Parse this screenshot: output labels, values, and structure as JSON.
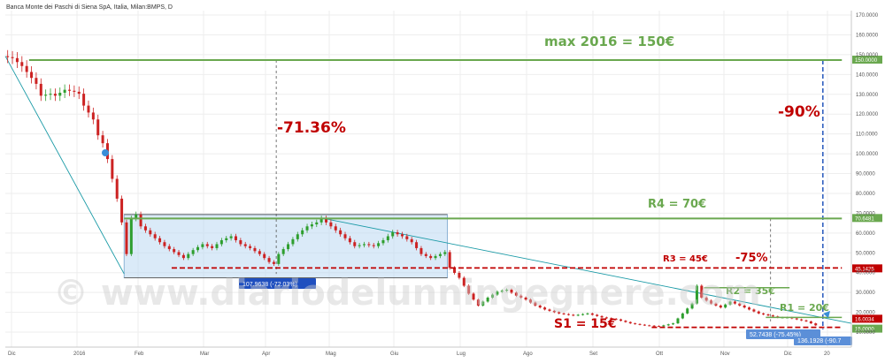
{
  "chart_data": {
    "type": "candlestick",
    "instrument": "Banca Monte dei Paschi di Siena SpA, Italia, Milan:BMPS, D",
    "watermark": "© www.diariodelunningegnere.com",
    "x_ticks": [
      "Dic",
      "2016",
      "Feb",
      "Mar",
      "Apr",
      "Mag",
      "Giu",
      "Lug",
      "Ago",
      "Set",
      "Ott",
      "Nov",
      "Dic",
      "20"
    ],
    "y_ticks": [
      "170.0000",
      "160.0000",
      "150.0000",
      "140.0000",
      "130.0000",
      "120.0000",
      "110.0000",
      "100.0000",
      "90.0000",
      "80.0000",
      "70.0000",
      "60.0000",
      "50.0000",
      "40.0000",
      "30.0000",
      "20.0000",
      "10.0000"
    ],
    "ylim": [
      5,
      175
    ],
    "price_series": [
      {
        "t": 0,
        "v": 152
      },
      {
        "t": 2,
        "v": 151
      },
      {
        "t": 4,
        "v": 147
      },
      {
        "t": 5,
        "v": 144
      },
      {
        "t": 7,
        "v": 138
      },
      {
        "t": 8,
        "v": 132
      },
      {
        "t": 10,
        "v": 133
      },
      {
        "t": 11,
        "v": 132
      },
      {
        "t": 13,
        "v": 135
      },
      {
        "t": 15,
        "v": 134
      },
      {
        "t": 16,
        "v": 133
      },
      {
        "t": 17,
        "v": 127
      },
      {
        "t": 19,
        "v": 120
      },
      {
        "t": 20,
        "v": 112
      },
      {
        "t": 21,
        "v": 108
      },
      {
        "t": 22,
        "v": 100
      },
      {
        "t": 23,
        "v": 90
      },
      {
        "t": 24,
        "v": 80
      },
      {
        "t": 25,
        "v": 68
      },
      {
        "t": 26,
        "v": 52
      },
      {
        "t": 27,
        "v": 70
      },
      {
        "t": 28,
        "v": 72
      },
      {
        "t": 29,
        "v": 66
      },
      {
        "t": 31,
        "v": 62
      },
      {
        "t": 32,
        "v": 60
      },
      {
        "t": 34,
        "v": 56
      },
      {
        "t": 36,
        "v": 53
      },
      {
        "t": 38,
        "v": 50
      },
      {
        "t": 40,
        "v": 54
      },
      {
        "t": 42,
        "v": 57
      },
      {
        "t": 44,
        "v": 55
      },
      {
        "t": 46,
        "v": 59
      },
      {
        "t": 48,
        "v": 61
      },
      {
        "t": 50,
        "v": 57
      },
      {
        "t": 52,
        "v": 55
      },
      {
        "t": 54,
        "v": 52
      },
      {
        "t": 56,
        "v": 48
      },
      {
        "t": 57,
        "v": 47
      },
      {
        "t": 58,
        "v": 52
      },
      {
        "t": 60,
        "v": 57
      },
      {
        "t": 62,
        "v": 62
      },
      {
        "t": 64,
        "v": 66
      },
      {
        "t": 66,
        "v": 68
      },
      {
        "t": 67,
        "v": 70
      },
      {
        "t": 68,
        "v": 68
      },
      {
        "t": 70,
        "v": 64
      },
      {
        "t": 72,
        "v": 60
      },
      {
        "t": 74,
        "v": 56
      },
      {
        "t": 76,
        "v": 57
      },
      {
        "t": 78,
        "v": 56
      },
      {
        "t": 80,
        "v": 59
      },
      {
        "t": 82,
        "v": 63
      },
      {
        "t": 84,
        "v": 61
      },
      {
        "t": 86,
        "v": 58
      },
      {
        "t": 88,
        "v": 52
      },
      {
        "t": 90,
        "v": 50
      },
      {
        "t": 92,
        "v": 52
      },
      {
        "t": 93,
        "v": 53
      },
      {
        "t": 94,
        "v": 45
      },
      {
        "t": 96,
        "v": 40
      },
      {
        "t": 98,
        "v": 32
      },
      {
        "t": 100,
        "v": 26
      },
      {
        "t": 102,
        "v": 30
      },
      {
        "t": 104,
        "v": 33
      },
      {
        "t": 106,
        "v": 34
      },
      {
        "t": 108,
        "v": 31
      },
      {
        "t": 110,
        "v": 29
      },
      {
        "t": 112,
        "v": 26
      },
      {
        "t": 114,
        "v": 24
      },
      {
        "t": 117,
        "v": 22
      },
      {
        "t": 120,
        "v": 21
      },
      {
        "t": 123,
        "v": 22
      },
      {
        "t": 126,
        "v": 20
      },
      {
        "t": 129,
        "v": 19
      },
      {
        "t": 132,
        "v": 17
      },
      {
        "t": 135,
        "v": 16
      },
      {
        "t": 138,
        "v": 15.5
      },
      {
        "t": 141,
        "v": 17
      },
      {
        "t": 143,
        "v": 22
      },
      {
        "t": 145,
        "v": 27
      },
      {
        "t": 146,
        "v": 36
      },
      {
        "t": 147,
        "v": 30
      },
      {
        "t": 149,
        "v": 27
      },
      {
        "t": 151,
        "v": 25
      },
      {
        "t": 153,
        "v": 28
      },
      {
        "t": 155,
        "v": 26
      },
      {
        "t": 157,
        "v": 24
      },
      {
        "t": 159,
        "v": 22
      },
      {
        "t": 161,
        "v": 21
      },
      {
        "t": 163,
        "v": 20
      },
      {
        "t": 165,
        "v": 20
      },
      {
        "t": 167,
        "v": 19
      },
      {
        "t": 169,
        "v": 18
      },
      {
        "t": 171,
        "v": 16
      }
    ],
    "levels": [
      {
        "label": "max 2016 = 150€",
        "value": 150,
        "color": "#6aa84f"
      },
      {
        "label": "R4 = 70€",
        "value": 70,
        "color": "#6aa84f"
      },
      {
        "label": "R3 = 45€",
        "value": 45,
        "color": "#c00000"
      },
      {
        "label": "R2 = 35€",
        "value": 35,
        "color": "#6aa84f"
      },
      {
        "label": "R1 = 20€",
        "value": 20,
        "color": "#6aa84f"
      },
      {
        "label": "S1 = 15€",
        "value": 15,
        "color": "#c00000"
      }
    ],
    "drops": [
      {
        "label": "-71.36%"
      },
      {
        "label": "-90%"
      },
      {
        "label": "-75%"
      }
    ],
    "price_tags": [
      {
        "text": "150.0000",
        "color": "#6aa84f"
      },
      {
        "text": "70.6481",
        "color": "#6aa84f"
      },
      {
        "text": "45.1425",
        "color": "#c00000"
      },
      {
        "text": "16.0034",
        "color": "#c00000"
      },
      {
        "text": "15.0000",
        "color": "#6aa84f"
      }
    ],
    "boxes": [
      {
        "text": "107.9638 (-72.03%)",
        "color": "#1f4fbf"
      },
      {
        "text": "52.7438 (-75.45%)",
        "color": "#5b8fd8"
      },
      {
        "text": "136.1928 (-90.7",
        "color": "#5b8fd8"
      }
    ],
    "grid": true,
    "colors": {
      "up": "#2e9e2e",
      "down": "#cc2222",
      "trend": "#1a9aa6"
    }
  }
}
